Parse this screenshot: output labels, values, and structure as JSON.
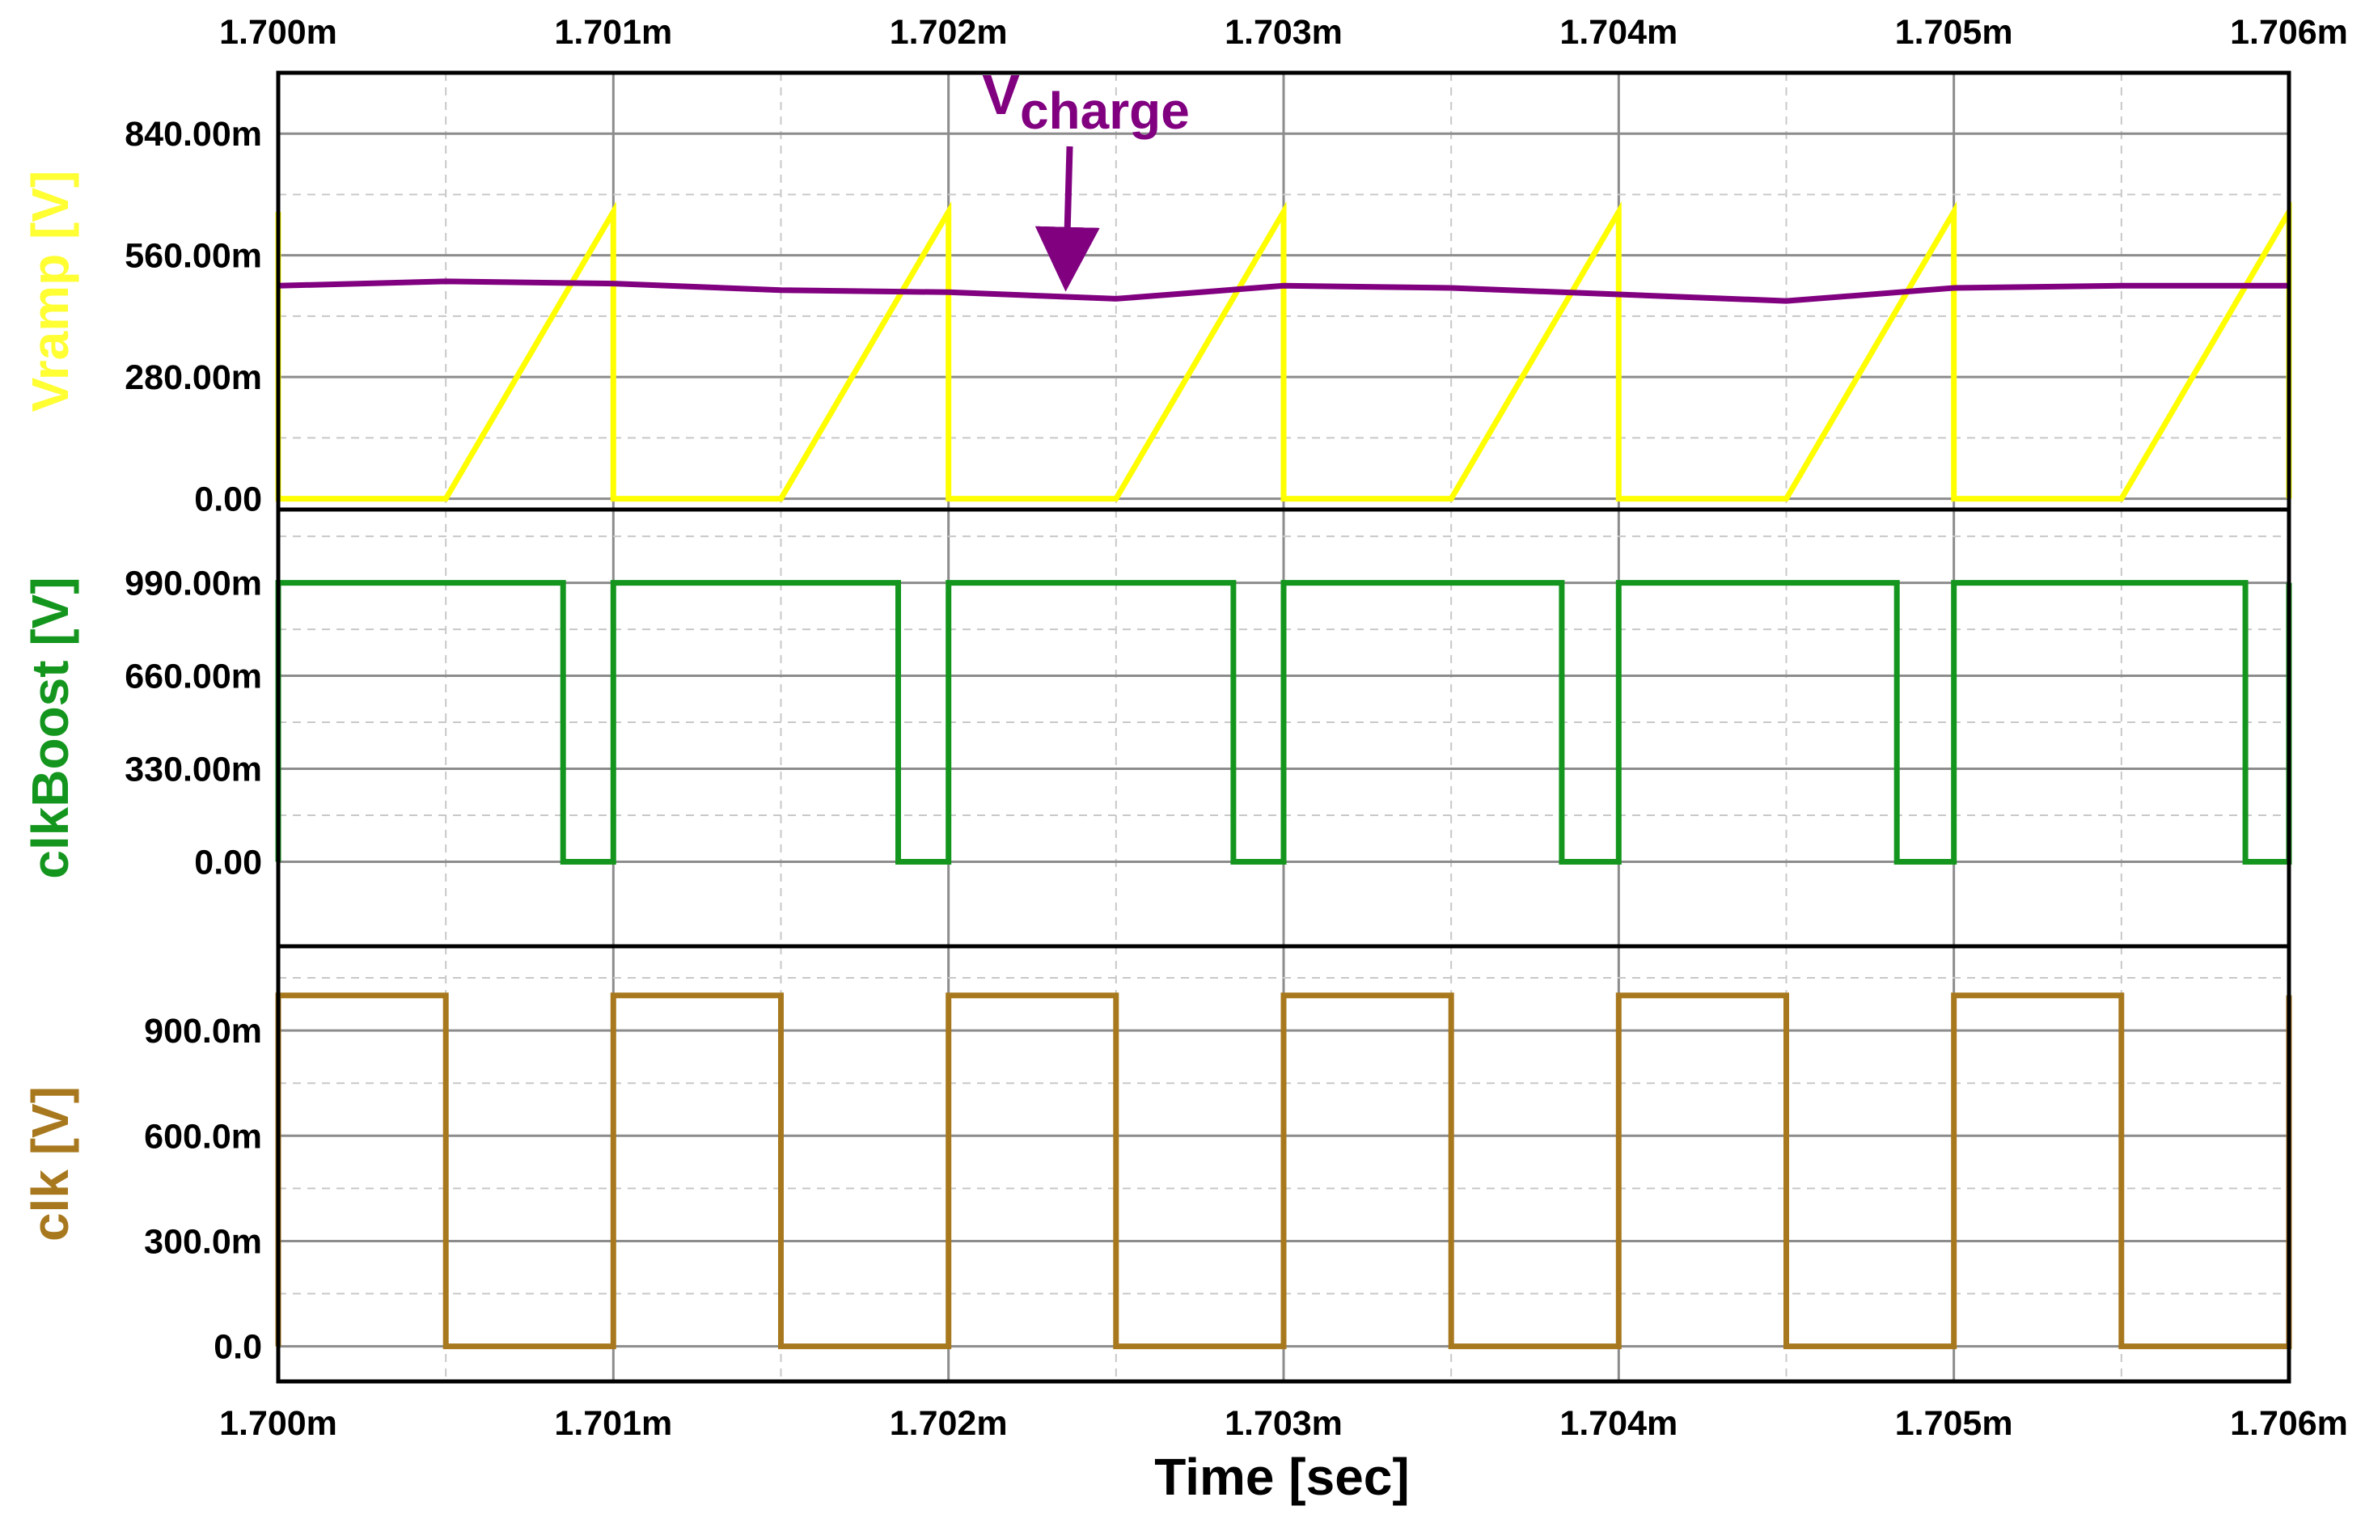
{
  "chart_data": {
    "type": "line",
    "xlabel": "Time [sec]",
    "x_ticks": [
      "1.700m",
      "1.701m",
      "1.702m",
      "1.703m",
      "1.704m",
      "1.705m",
      "1.706m"
    ],
    "xlim": [
      1.7,
      1.706
    ],
    "x_unit": "ms",
    "grid": true,
    "panels": [
      {
        "ylabel": "Vramp [V]",
        "ylabel_main": "Vramp",
        "ylabel_unit": " [V]",
        "ylabel_color": "#ffff33",
        "y_ticks": [
          "840.00m",
          "560.00m",
          "280.00m",
          "0.00"
        ],
        "y_tick_values": [
          0.84,
          0.56,
          0.28,
          0.0
        ],
        "ylim": [
          -0.025,
          0.98
        ],
        "series": [
          {
            "key": "vramp",
            "color": "#ffff00",
            "x": [
              1.7,
              1.7,
              1.7005,
              1.701,
              1.701,
              1.7015,
              1.702,
              1.702,
              1.7025,
              1.703,
              1.703,
              1.7035,
              1.704,
              1.704,
              1.7045,
              1.705,
              1.705,
              1.7055,
              1.706,
              1.706
            ],
            "y": [
              0.66,
              0.0,
              0.0,
              0.66,
              0.0,
              0.0,
              0.66,
              0.0,
              0.0,
              0.66,
              0.0,
              0.0,
              0.66,
              0.0,
              0.0,
              0.66,
              0.0,
              0.0,
              0.66,
              0.0
            ]
          },
          {
            "key": "vcharge",
            "color": "#800080",
            "x": [
              1.7,
              1.7005,
              1.701,
              1.7015,
              1.702,
              1.7025,
              1.703,
              1.7035,
              1.704,
              1.7045,
              1.705,
              1.7055,
              1.706
            ],
            "y": [
              0.49,
              0.5,
              0.495,
              0.48,
              0.475,
              0.46,
              0.49,
              0.485,
              0.47,
              0.455,
              0.485,
              0.49,
              0.49
            ]
          }
        ]
      },
      {
        "ylabel": "clkBoost [V]",
        "ylabel_main": "clkBoost",
        "ylabel_unit": " [V]",
        "ylabel_color": "#14961e",
        "y_ticks": [
          "990.00m",
          "660.00m",
          "330.00m",
          "0.00"
        ],
        "y_tick_values": [
          0.99,
          0.66,
          0.33,
          0.0
        ],
        "ylim": [
          -0.3,
          1.25
        ],
        "series": [
          {
            "key": "clkboost",
            "color": "#14961e",
            "x": [
              1.7,
              1.7,
              1.70085,
              1.70085,
              1.701,
              1.701,
              1.70185,
              1.70185,
              1.702,
              1.702,
              1.70285,
              1.70285,
              1.703,
              1.703,
              1.70383,
              1.70383,
              1.704,
              1.704,
              1.70483,
              1.70483,
              1.705,
              1.705,
              1.70587,
              1.70587,
              1.706,
              1.706
            ],
            "y": [
              0.0,
              0.99,
              0.99,
              0.0,
              0.0,
              0.99,
              0.99,
              0.0,
              0.0,
              0.99,
              0.99,
              0.0,
              0.0,
              0.99,
              0.99,
              0.0,
              0.0,
              0.99,
              0.99,
              0.0,
              0.0,
              0.99,
              0.99,
              0.0,
              0.0,
              0.99
            ]
          }
        ]
      },
      {
        "ylabel": "clk [V]",
        "ylabel_main": "clk",
        "ylabel_unit": " [V]",
        "ylabel_color": "#a8781e",
        "y_ticks": [
          "900.0m",
          "600.0m",
          "300.0m",
          "0.0"
        ],
        "y_tick_values": [
          0.9,
          0.6,
          0.3,
          0.0
        ],
        "ylim": [
          -0.1,
          1.14
        ],
        "series": [
          {
            "key": "clk",
            "color": "#a8781e",
            "x": [
              1.7,
              1.7,
              1.7005,
              1.7005,
              1.701,
              1.701,
              1.7015,
              1.7015,
              1.702,
              1.702,
              1.7025,
              1.7025,
              1.703,
              1.703,
              1.7035,
              1.7035,
              1.704,
              1.704,
              1.7045,
              1.7045,
              1.705,
              1.705,
              1.7055,
              1.7055,
              1.706,
              1.706
            ],
            "y": [
              0.0,
              1.0,
              1.0,
              0.0,
              0.0,
              1.0,
              1.0,
              0.0,
              0.0,
              1.0,
              1.0,
              0.0,
              0.0,
              1.0,
              1.0,
              0.0,
              0.0,
              1.0,
              1.0,
              0.0,
              0.0,
              1.0,
              1.0,
              0.0,
              0.0,
              1.0
            ]
          }
        ]
      }
    ],
    "annotation": {
      "text_main": "V",
      "text_sub": "charge",
      "color": "#800080",
      "x": 1.70241,
      "y": 0.885,
      "arrow_to_x": 1.70237,
      "arrow_to_y": 0.48,
      "target_series": "vcharge"
    }
  }
}
